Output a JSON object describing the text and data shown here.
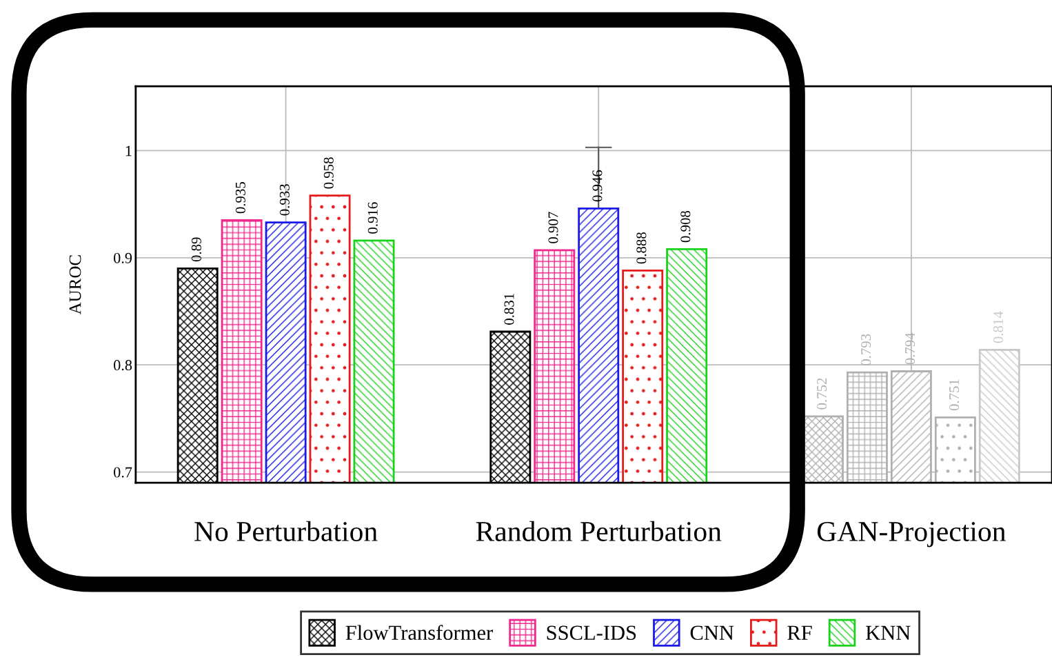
{
  "chart_data": {
    "type": "bar",
    "ylabel": "AUROC",
    "categories": [
      "No Perturbation",
      "Random Perturbation",
      "GAN-Projection"
    ],
    "series": [
      {
        "name": "FlowTransformer",
        "color": "#000000",
        "colors": [
          "#000000",
          "#000000",
          "#b0b0b0"
        ],
        "values": [
          0.89,
          0.831,
          0.752
        ]
      },
      {
        "name": "SSCL-IDS",
        "color": "#f0288c",
        "colors": [
          "#f0288c",
          "#f0288c",
          "#b0b0b0"
        ],
        "values": [
          0.935,
          0.907,
          0.793
        ]
      },
      {
        "name": "CNN",
        "color": "#1a1ae6",
        "colors": [
          "#1a1ae6",
          "#1a1ae6",
          "#b0b0b0"
        ],
        "values": [
          0.933,
          0.946,
          0.794
        ],
        "errors": [
          null,
          [
            0.946,
            1.003
          ],
          null
        ]
      },
      {
        "name": "RF",
        "color": "#e61a1a",
        "colors": [
          "#e61a1a",
          "#e61a1a",
          "#b0b0b0"
        ],
        "values": [
          0.958,
          0.888,
          0.751
        ]
      },
      {
        "name": "KNN",
        "color": "#1ad21a",
        "colors": [
          "#1ad21a",
          "#1ad21a",
          "#c8c8c8"
        ],
        "values": [
          0.916,
          0.908,
          0.814
        ]
      }
    ],
    "ylim": [
      0.69,
      1.06
    ],
    "yticks": [
      0.7,
      0.8,
      0.9,
      1
    ],
    "grid": true,
    "data_labels": true,
    "legend": "bottom"
  }
}
